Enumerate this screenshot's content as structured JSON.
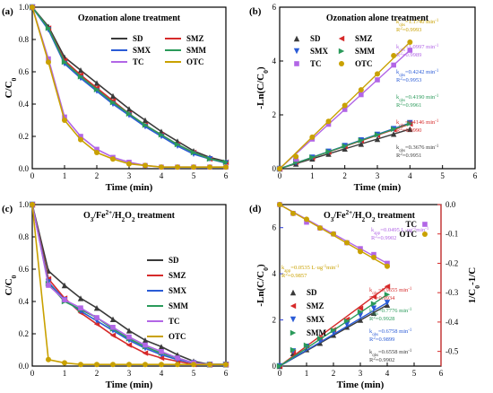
{
  "colors": {
    "SD": "#3a3a3a",
    "SMZ": "#d62a2a",
    "SMX": "#2a5bd6",
    "SMM": "#2a9a5a",
    "TC": "#b266e6",
    "OTC": "#c9a100",
    "red_axis": "#d62a2a",
    "blue_axis": "#2a3ad6"
  },
  "chart_data": [
    {
      "panel": "(a)",
      "type": "line",
      "title": "Ozonation alone treatment",
      "xlabel": "Time (min)",
      "ylabel": "C/C0",
      "xlim": [
        0,
        6
      ],
      "ylim": [
        0,
        1.0
      ],
      "xticks": [
        "0",
        "1",
        "2",
        "3",
        "4",
        "5",
        "6"
      ],
      "yticks": [
        "0.0",
        "0.2",
        "0.4",
        "0.6",
        "0.8",
        "1.0"
      ],
      "legend": [
        "SD",
        "SMZ",
        "SMX",
        "SMM",
        "TC",
        "OTC"
      ],
      "x": [
        0,
        0.5,
        1,
        1.5,
        2,
        2.5,
        3,
        3.5,
        4,
        4.5,
        5,
        5.5,
        6
      ],
      "series": [
        {
          "name": "SD",
          "values": [
            1.0,
            0.88,
            0.69,
            0.61,
            0.53,
            0.45,
            0.37,
            0.3,
            0.23,
            0.17,
            0.11,
            0.07,
            0.045
          ]
        },
        {
          "name": "SMZ",
          "values": [
            1.0,
            0.87,
            0.67,
            0.58,
            0.5,
            0.42,
            0.34,
            0.27,
            0.21,
            0.15,
            0.1,
            0.06,
            0.04
          ]
        },
        {
          "name": "SMX",
          "values": [
            1.0,
            0.86,
            0.65,
            0.56,
            0.48,
            0.4,
            0.33,
            0.26,
            0.2,
            0.14,
            0.09,
            0.06,
            0.035
          ]
        },
        {
          "name": "SMM",
          "values": [
            1.0,
            0.87,
            0.66,
            0.57,
            0.49,
            0.41,
            0.34,
            0.27,
            0.21,
            0.15,
            0.1,
            0.06,
            0.04
          ]
        },
        {
          "name": "TC",
          "values": [
            1.0,
            0.68,
            0.32,
            0.2,
            0.12,
            0.07,
            0.04,
            0.02,
            0.01,
            0.01,
            0.01,
            0.01,
            0.01
          ]
        },
        {
          "name": "OTC",
          "values": [
            1.0,
            0.66,
            0.3,
            0.18,
            0.1,
            0.06,
            0.03,
            0.02,
            0.01,
            0.01,
            0.01,
            0.01,
            0.01
          ]
        }
      ]
    },
    {
      "panel": "(b)",
      "type": "scatter",
      "title": "Ozonation alone treatment",
      "xlabel": "Time (min)",
      "ylabel": "-Ln(C/C0)",
      "xlim": [
        0,
        6
      ],
      "ylim": [
        0,
        6
      ],
      "xticks": [
        "0",
        "1",
        "2",
        "3",
        "4",
        "5",
        "6"
      ],
      "yticks": [
        "0",
        "2",
        "4",
        "6"
      ],
      "legend": [
        "SD",
        "SMZ",
        "SMX",
        "SMM",
        "TC",
        "OTC"
      ],
      "x": [
        0,
        0.5,
        1,
        1.5,
        2,
        2.5,
        3,
        3.5,
        4
      ],
      "series": [
        {
          "name": "SD",
          "values": [
            0,
            0.18,
            0.37,
            0.55,
            0.74,
            0.92,
            1.1,
            1.29,
            1.47
          ]
        },
        {
          "name": "SMZ",
          "values": [
            0,
            0.25,
            0.41,
            0.62,
            0.83,
            1.04,
            1.24,
            1.45,
            1.66
          ]
        },
        {
          "name": "SMX",
          "values": [
            0,
            0.22,
            0.42,
            0.64,
            0.85,
            1.06,
            1.27,
            1.48,
            1.7
          ]
        },
        {
          "name": "SMM",
          "values": [
            0,
            0.28,
            0.42,
            0.63,
            0.84,
            1.05,
            1.26,
            1.47,
            1.68
          ]
        },
        {
          "name": "TC",
          "values": [
            0,
            0.35,
            1.1,
            1.65,
            2.2,
            2.75,
            3.3,
            3.85,
            4.4
          ]
        },
        {
          "name": "OTC",
          "values": [
            0,
            0.45,
            1.17,
            1.76,
            2.35,
            2.93,
            3.52,
            4.2,
            4.7
          ]
        }
      ],
      "annotations": [
        {
          "k": "kobs=1.1740 min-1",
          "r2": "R2=0.9993",
          "color": "#c9a100"
        },
        {
          "k": "kobs=1.0997 min-1",
          "r2": "R2=0.9989",
          "color": "#b266e6"
        },
        {
          "k": "kobs=0.4242 min-1",
          "r2": "R2=0.9953",
          "color": "#2a5bd6"
        },
        {
          "k": "kobs=0.4190 min-1",
          "r2": "R2=0.9961",
          "color": "#2a9a5a"
        },
        {
          "k": "kobs=0.4146 min-1",
          "r2": "R2=0.9990",
          "color": "#d62a2a"
        },
        {
          "k": "kobs=0.3676 min-1",
          "r2": "R2=0.9951",
          "color": "#3a3a3a"
        }
      ]
    },
    {
      "panel": "(c)",
      "type": "line",
      "title": "O3/Fe2+/H2O2 treatment",
      "xlabel": "Time (min)",
      "ylabel": "C/C0",
      "xlim": [
        0,
        6
      ],
      "ylim": [
        0,
        1.0
      ],
      "xticks": [
        "0",
        "1",
        "2",
        "3",
        "4",
        "5",
        "6"
      ],
      "yticks": [
        "0.0",
        "0.2",
        "0.4",
        "0.6",
        "0.8",
        "1.0"
      ],
      "legend": [
        "SD",
        "SMZ",
        "SMX",
        "SMM",
        "TC",
        "OTC"
      ],
      "x": [
        0,
        0.5,
        1,
        1.5,
        2,
        2.5,
        3,
        3.5,
        4,
        4.5,
        5,
        5.5,
        6
      ],
      "series": [
        {
          "name": "SD",
          "values": [
            1.0,
            0.59,
            0.5,
            0.42,
            0.36,
            0.29,
            0.22,
            0.16,
            0.12,
            0.07,
            0.03,
            0.01,
            0.01
          ]
        },
        {
          "name": "SMZ",
          "values": [
            1.0,
            0.54,
            0.42,
            0.33,
            0.26,
            0.19,
            0.13,
            0.08,
            0.05,
            0.03,
            0.01,
            0.01,
            0.01
          ]
        },
        {
          "name": "SMX",
          "values": [
            1.0,
            0.52,
            0.41,
            0.34,
            0.28,
            0.22,
            0.16,
            0.11,
            0.07,
            0.04,
            0.02,
            0.01,
            0.01
          ]
        },
        {
          "name": "SMM",
          "values": [
            1.0,
            0.51,
            0.4,
            0.35,
            0.3,
            0.23,
            0.17,
            0.12,
            0.08,
            0.05,
            0.02,
            0.01,
            0.01
          ]
        },
        {
          "name": "TC",
          "values": [
            1.0,
            0.5,
            0.41,
            0.36,
            0.3,
            0.24,
            0.18,
            0.13,
            0.09,
            0.05,
            0.02,
            0.01,
            0.01
          ]
        },
        {
          "name": "OTC",
          "values": [
            1.0,
            0.04,
            0.02,
            0.01,
            0.01,
            0.01,
            0.01,
            0.01,
            0.01,
            0.01,
            0.01,
            0.01,
            0.01
          ]
        }
      ]
    },
    {
      "panel": "(d)",
      "type": "scatter",
      "title": "O3/Fe2+/H2O2 treatment",
      "xlabel": "Time (min)",
      "ylabel": "-Ln(C/C0)",
      "y2label": "1/C0-1/C",
      "xlim": [
        0,
        6
      ],
      "ylim": [
        0,
        7
      ],
      "y2lim": [
        -0.55,
        0.0
      ],
      "xticks": [
        "0",
        "1",
        "2",
        "3",
        "4",
        "5",
        "6"
      ],
      "yticks": [
        "0",
        "2",
        "4",
        "6"
      ],
      "y2ticks": [
        "0.0",
        "-0.1",
        "-0.2",
        "-0.3",
        "-0.4",
        "-0.5"
      ],
      "legend_left": [
        "SD",
        "SMZ",
        "SMX",
        "SMM"
      ],
      "legend_right": [
        "TC",
        "OTC"
      ],
      "x": [
        0,
        0.5,
        1,
        1.5,
        2,
        2.5,
        3,
        3.5,
        4
      ],
      "series": [
        {
          "name": "SD",
          "axis": "left",
          "values": [
            0,
            0.55,
            0.72,
            1.0,
            1.35,
            1.7,
            2.0,
            2.3,
            2.65
          ]
        },
        {
          "name": "SMZ",
          "axis": "left",
          "values": [
            0,
            0.6,
            0.87,
            1.2,
            1.57,
            2.02,
            2.5,
            3.0,
            3.45
          ]
        },
        {
          "name": "SMX",
          "axis": "left",
          "values": [
            0,
            0.65,
            0.85,
            1.1,
            1.45,
            1.8,
            2.2,
            2.5,
            2.75
          ]
        },
        {
          "name": "SMM",
          "axis": "left",
          "values": [
            0,
            0.7,
            0.9,
            1.2,
            1.55,
            1.95,
            2.35,
            2.7,
            3.1
          ]
        },
        {
          "name": "TC",
          "axis": "right",
          "values": [
            0.0,
            -0.03,
            -0.06,
            -0.08,
            -0.1,
            -0.13,
            -0.15,
            -0.17,
            -0.2
          ]
        },
        {
          "name": "OTC",
          "axis": "right",
          "values": [
            0.0,
            -0.03,
            -0.05,
            -0.08,
            -0.1,
            -0.13,
            -0.16,
            -0.18,
            -0.21
          ]
        }
      ],
      "annotations": [
        {
          "k": "kapp=0.0495 L·ug-1min-1",
          "r2": "R2=0.9902",
          "color": "#b266e6"
        },
        {
          "k": "kapp=0.0535 L·ug-1min-1",
          "r2": "R2=0.9857",
          "color": "#c9a100"
        },
        {
          "k": "kobs=0.9655 min-1",
          "r2": "R2=0.9934",
          "color": "#d62a2a"
        },
        {
          "k": "kobs=0.7776 min-1",
          "r2": "R2=0.9928",
          "color": "#2a9a5a"
        },
        {
          "k": "kobs=0.6758 min-1",
          "r2": "R2=0.9899",
          "color": "#2a5bd6"
        },
        {
          "k": "kobs=0.6558 min-1",
          "r2": "R2=0.9902",
          "color": "#3a3a3a"
        }
      ]
    }
  ]
}
